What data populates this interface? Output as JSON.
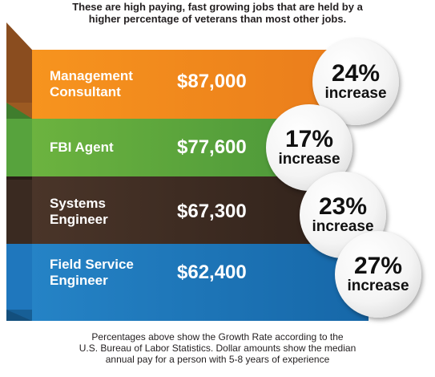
{
  "intro": {
    "line1": "These are high paying, fast growing jobs that are held by a",
    "line2": "higher percentage of veterans than most other jobs."
  },
  "colors": {
    "management": "#ef8b22",
    "fbi": "#5ba743",
    "systems": "#3b2a21",
    "field": "#1c75bc"
  },
  "jobs": [
    {
      "title_line1": "Management",
      "title_line2": "Consultant",
      "salary": "$87,000",
      "percent": "24%",
      "increase_label": "increase"
    },
    {
      "title_line1": "FBI Agent",
      "title_line2": "",
      "salary": "$77,600",
      "percent": "17%",
      "increase_label": "increase"
    },
    {
      "title_line1": "Systems",
      "title_line2": "Engineer",
      "salary": "$67,300",
      "percent": "23%",
      "increase_label": "increase"
    },
    {
      "title_line1": "Field Service",
      "title_line2": "Engineer",
      "salary": "$62,400",
      "percent": "27%",
      "increase_label": "increase"
    }
  ],
  "footnote": {
    "line1": "Percentages above show the Growth Rate according to the",
    "line2": "U.S. Bureau of Labor Statistics. Dollar amounts show the median",
    "line3": "annual pay for a person with 5-8 years of experience"
  }
}
